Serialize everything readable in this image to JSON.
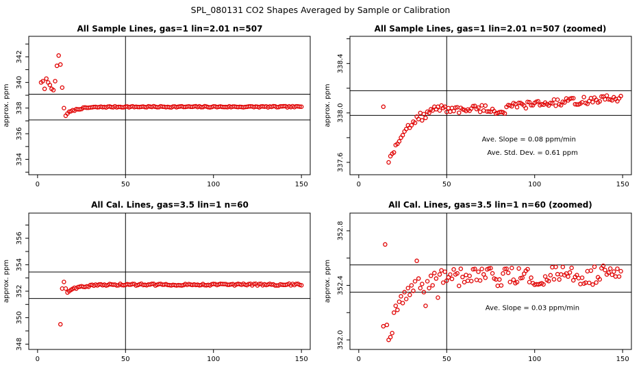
{
  "figure": {
    "title": "SPL_080131  CO2 Shapes Averaged by Sample or Calibration"
  },
  "chart_data": [
    {
      "id": "p1",
      "type": "scatter",
      "title": "All Sample Lines, gas=1 lin=2.01 n=507",
      "ylabel": "approx. ppm",
      "xlim": [
        -5,
        155
      ],
      "ylim": [
        332.8,
        343.6
      ],
      "xticks": [
        0,
        50,
        100,
        150
      ],
      "yticks": [
        334,
        336,
        338,
        340,
        342
      ],
      "vline": 50,
      "hlines": [
        337.08,
        339.08
      ],
      "annotations": [],
      "series": [
        {
          "color": "#e00000",
          "points": [
            [
              2,
              340.0
            ],
            [
              3,
              340.1
            ],
            [
              4,
              339.5
            ],
            [
              5,
              340.3
            ],
            [
              6,
              340.0
            ],
            [
              7,
              339.8
            ],
            [
              8,
              339.5
            ],
            [
              9,
              339.4
            ],
            [
              10,
              340.1
            ],
            [
              11,
              341.3
            ],
            [
              12,
              342.1
            ],
            [
              13,
              341.4
            ],
            [
              14,
              339.6
            ],
            [
              15,
              338.0
            ],
            [
              16,
              337.4
            ]
          ],
          "curve": {
            "x_from": 17,
            "x_to": 150,
            "start": 337.6,
            "end": 338.1,
            "tau": 6,
            "noise": 0.05
          }
        }
      ]
    },
    {
      "id": "p2",
      "type": "scatter",
      "title": "All Sample Lines, gas=1 lin=2.01 n=507 (zoomed)",
      "ylabel": "approx. ppm",
      "xlim": [
        -5,
        155
      ],
      "ylim": [
        337.5,
        338.62
      ],
      "xticks": [
        0,
        50,
        100,
        150
      ],
      "yticks": [
        337.6,
        338.0,
        338.4
      ],
      "vline": 50,
      "hlines": [
        337.98,
        338.18
      ],
      "annotations": [
        {
          "text": "Ave. Slope =  0.08  ppm/min",
          "x": 70,
          "y": 337.77
        },
        {
          "text": "Ave. Std. Dev. =  0.61  ppm",
          "x": 73,
          "y": 337.66
        }
      ],
      "series": [
        {
          "color": "#e00000",
          "points": [
            [
              14,
              338.05
            ],
            [
              17,
              337.6
            ],
            [
              18,
              337.65
            ],
            [
              19,
              337.67
            ],
            [
              20,
              337.68
            ],
            [
              21,
              337.74
            ],
            [
              22,
              337.75
            ],
            [
              23,
              337.77
            ],
            [
              24,
              337.8
            ],
            [
              25,
              337.82
            ],
            [
              26,
              337.85
            ],
            [
              27,
              337.87
            ],
            [
              28,
              337.9
            ],
            [
              29,
              337.88
            ],
            [
              30,
              337.9
            ],
            [
              31,
              337.93
            ],
            [
              32,
              337.92
            ],
            [
              33,
              337.97
            ],
            [
              34,
              337.95
            ],
            [
              35,
              338.0
            ],
            [
              36,
              337.94
            ],
            [
              37,
              337.99
            ],
            [
              38,
              337.96
            ],
            [
              39,
              338.01
            ],
            [
              40,
              338.0
            ],
            [
              41,
              338.03
            ],
            [
              42,
              338.02
            ],
            [
              43,
              338.05
            ],
            [
              44,
              338.03
            ],
            [
              45,
              338.05
            ],
            [
              46,
              338.02
            ],
            [
              47,
              338.06
            ],
            [
              48,
              338.04
            ],
            [
              49,
              338.05
            ]
          ],
          "curve": {
            "x_from": 50,
            "x_to": 149,
            "start": 338.02,
            "end": 338.12,
            "tau": 0,
            "noise": 0.03,
            "dip_at": 80,
            "dip": -0.04
          }
        }
      ]
    },
    {
      "id": "p3",
      "type": "scatter",
      "title": "All Cal. Lines, gas=3.5 lin=1 n=60",
      "ylabel": "approx. ppm",
      "xlim": [
        -5,
        155
      ],
      "ylim": [
        347.6,
        357.9
      ],
      "xticks": [
        0,
        50,
        100,
        150
      ],
      "yticks": [
        348,
        350,
        352,
        354,
        356
      ],
      "vline": 50,
      "hlines": [
        351.45,
        353.45
      ],
      "annotations": [],
      "series": [
        {
          "color": "#e00000",
          "points": [
            [
              13,
              349.5
            ],
            [
              14,
              352.2
            ],
            [
              15,
              352.7
            ],
            [
              16,
              352.2
            ],
            [
              17,
              351.9
            ],
            [
              18,
              352.0
            ],
            [
              19,
              352.1
            ]
          ],
          "curve": {
            "x_from": 20,
            "x_to": 150,
            "start": 352.2,
            "end": 352.5,
            "tau": 8,
            "noise": 0.07
          }
        }
      ]
    },
    {
      "id": "p4",
      "type": "scatter",
      "title": "All Cal. Lines, gas=3.5 lin=1 n=60 (zoomed)",
      "ylabel": "approx. ppm",
      "xlim": [
        -5,
        155
      ],
      "ylim": [
        351.93,
        352.93
      ],
      "xticks": [
        0,
        50,
        100,
        150
      ],
      "yticks": [
        352.0,
        352.4,
        352.8
      ],
      "vline": 50,
      "hlines": [
        352.35,
        352.55
      ],
      "annotations": [
        {
          "text": "Ave. Slope =  0.03  ppm/min",
          "x": 72,
          "y": 352.22
        }
      ],
      "series": [
        {
          "color": "#e00000",
          "points": [
            [
              14,
              352.1
            ],
            [
              15,
              352.7
            ],
            [
              16,
              352.11
            ],
            [
              17,
              352.0
            ],
            [
              18,
              352.02
            ],
            [
              19,
              352.05
            ],
            [
              20,
              352.2
            ],
            [
              21,
              352.25
            ],
            [
              22,
              352.22
            ],
            [
              23,
              352.28
            ],
            [
              24,
              352.32
            ],
            [
              25,
              352.27
            ],
            [
              26,
              352.35
            ],
            [
              27,
              352.3
            ],
            [
              28,
              352.38
            ],
            [
              29,
              352.33
            ],
            [
              30,
              352.4
            ],
            [
              31,
              352.36
            ],
            [
              32,
              352.43
            ],
            [
              33,
              352.58
            ],
            [
              34,
              352.45
            ],
            [
              35,
              352.38
            ],
            [
              36,
              352.41
            ],
            [
              37,
              352.35
            ],
            [
              38,
              352.25
            ],
            [
              39,
              352.43
            ],
            [
              40,
              352.38
            ],
            [
              41,
              352.47
            ],
            [
              42,
              352.4
            ],
            [
              43,
              352.49
            ],
            [
              44,
              352.45
            ],
            [
              45,
              352.31
            ],
            [
              46,
              352.48
            ],
            [
              47,
              352.51
            ],
            [
              48,
              352.42
            ],
            [
              49,
              352.5
            ]
          ],
          "curve": {
            "x_from": 50,
            "x_to": 149,
            "start": 352.45,
            "end": 352.48,
            "tau": 0,
            "noise": 0.07
          }
        }
      ]
    }
  ]
}
